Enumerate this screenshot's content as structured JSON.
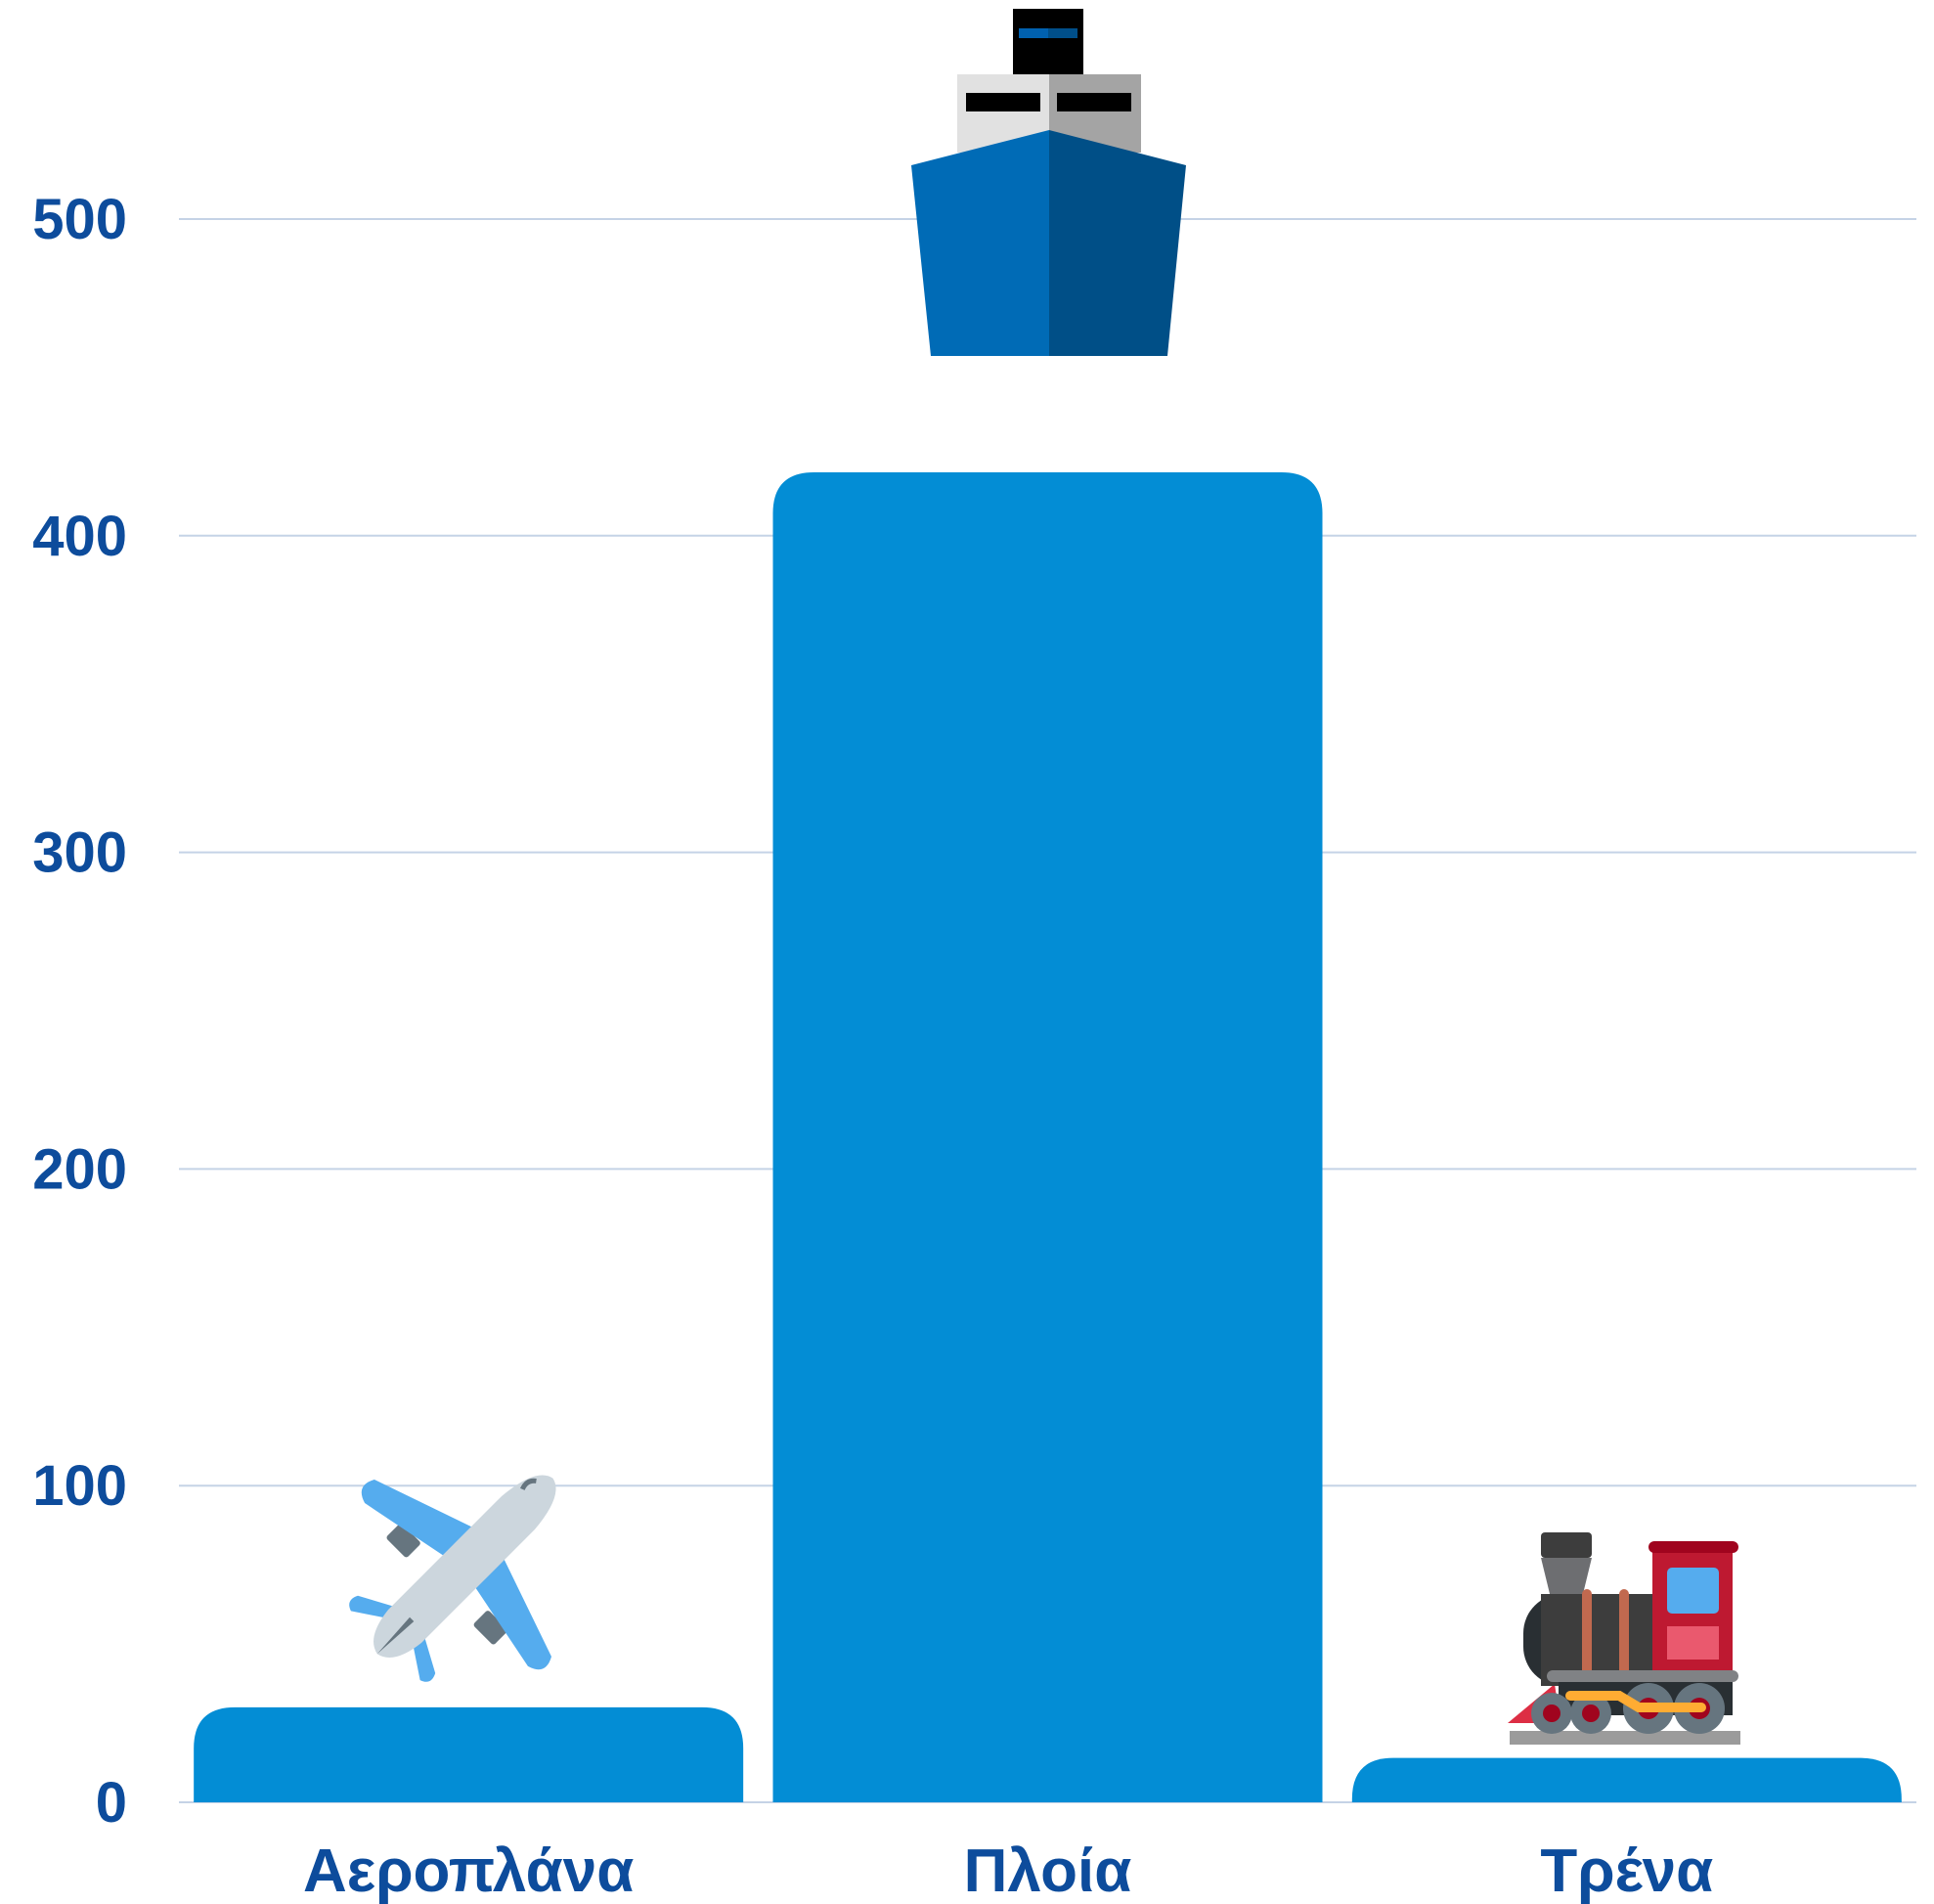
{
  "chart_data": {
    "type": "bar",
    "categories": [
      "Αεροπλάνα",
      "Πλοία",
      "Τρένα"
    ],
    "values": [
      30,
      420,
      14
    ],
    "icons": [
      "airplane-icon",
      "ship-icon",
      "locomotive-icon"
    ],
    "yticks": [
      "0",
      "100",
      "200",
      "300",
      "400",
      "500"
    ],
    "ylim": [
      0,
      500
    ],
    "grid": true,
    "title": "",
    "xlabel": "",
    "ylabel": ""
  },
  "colors": {
    "bar": "#038dd5",
    "text": "#0d4c9c",
    "grid": "#c5d3e6"
  }
}
